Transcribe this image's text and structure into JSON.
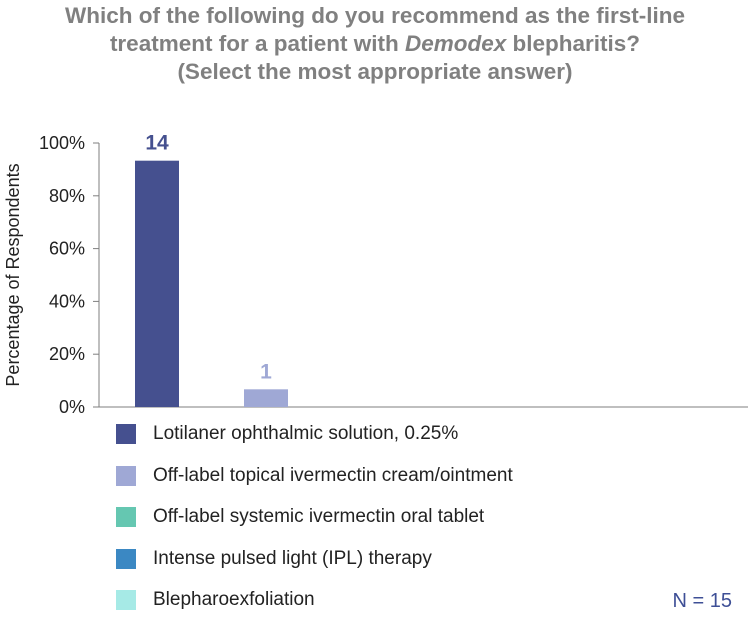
{
  "title": {
    "line1": "Which of the following do you recommend as the first-line",
    "line2_pre": "treatment for a patient with ",
    "line2_italic": "Demodex",
    "line2_post": " blepharitis?",
    "line3": "(Select the most appropriate answer)"
  },
  "n_label": "N = 15",
  "chart_data": {
    "type": "bar",
    "ylabel": "Percentage of Respondents",
    "xlabel": "",
    "ylim": [
      0,
      100
    ],
    "yticks": [
      0,
      20,
      40,
      60,
      80,
      100
    ],
    "ytick_labels": [
      "0%",
      "20%",
      "40%",
      "60%",
      "80%",
      "100%"
    ],
    "grid": false,
    "legend_position": "bottom",
    "categories": [
      "Lotilaner ophthalmic solution, 0.25%",
      "Off-label topical ivermectin cream/ointment",
      "Off-label systemic ivermectin oral tablet",
      "Intense pulsed light (IPL) therapy",
      "Blepharoexfoliation"
    ],
    "values": [
      93.3,
      6.7,
      0,
      0,
      0
    ],
    "counts": [
      "14",
      "1",
      null,
      null,
      null
    ],
    "colors": [
      "#45508f",
      "#9fa8d5",
      "#65c7b1",
      "#3b88c3",
      "#a6eae6"
    ]
  }
}
